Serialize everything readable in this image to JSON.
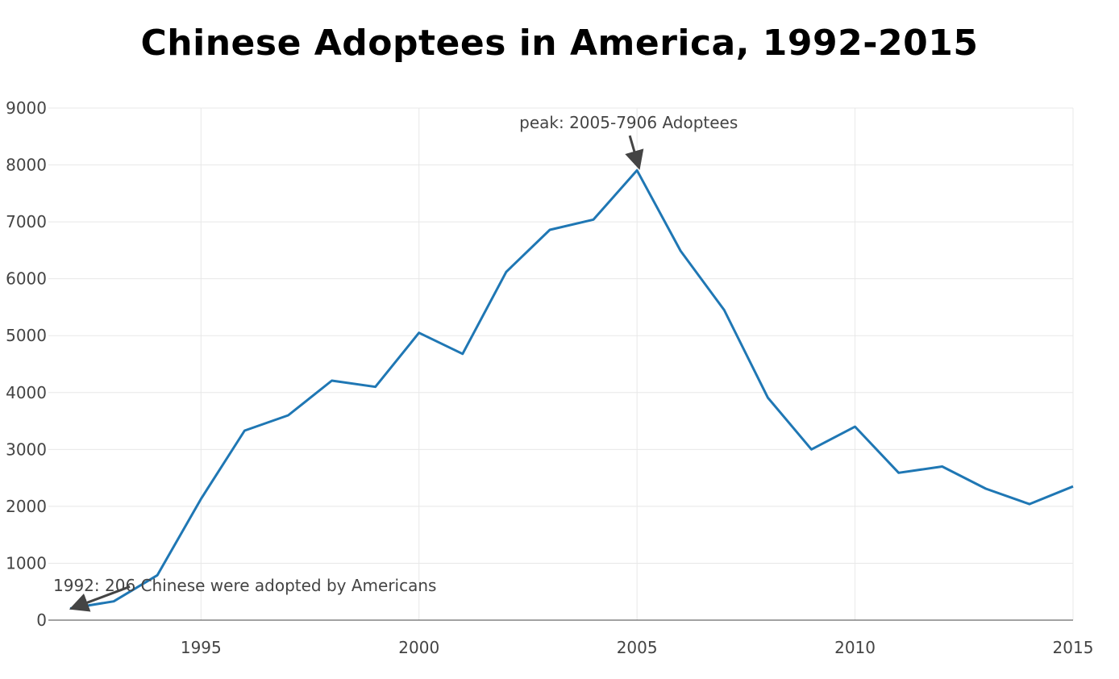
{
  "chart_data": {
    "type": "line",
    "title": "Chinese Adoptees in America, 1992-2015",
    "xlabel": "",
    "ylabel": "",
    "xlim": [
      1991.5,
      2015
    ],
    "ylim": [
      0,
      9000
    ],
    "grid": true,
    "x_ticks": [
      1995,
      2000,
      2005,
      2010,
      2015
    ],
    "y_ticks": [
      0,
      1000,
      2000,
      3000,
      4000,
      5000,
      6000,
      7000,
      8000,
      9000
    ],
    "line_color": "#1f77b4",
    "series": [
      {
        "x": [
          1992,
          1993,
          1994,
          1995,
          1996,
          1997,
          1998,
          1999,
          2000,
          2001,
          2002,
          2003,
          2004,
          2005,
          2006,
          2007,
          2008,
          2009,
          2010,
          2011,
          2012,
          2013,
          2014,
          2015
        ],
        "values": [
          206,
          330,
          790,
          2130,
          3330,
          3600,
          4210,
          4100,
          5050,
          4680,
          6120,
          6860,
          7040,
          7906,
          6490,
          5450,
          3910,
          3000,
          3400,
          2590,
          2700,
          2310,
          2040,
          2350
        ]
      }
    ],
    "annotations": [
      {
        "text": "peak: 2005-7906 Adoptees",
        "x": 2005,
        "y": 7906
      },
      {
        "text": "1992: 206 Chinese were adopted by Americans",
        "x": 1992,
        "y": 206
      }
    ]
  }
}
